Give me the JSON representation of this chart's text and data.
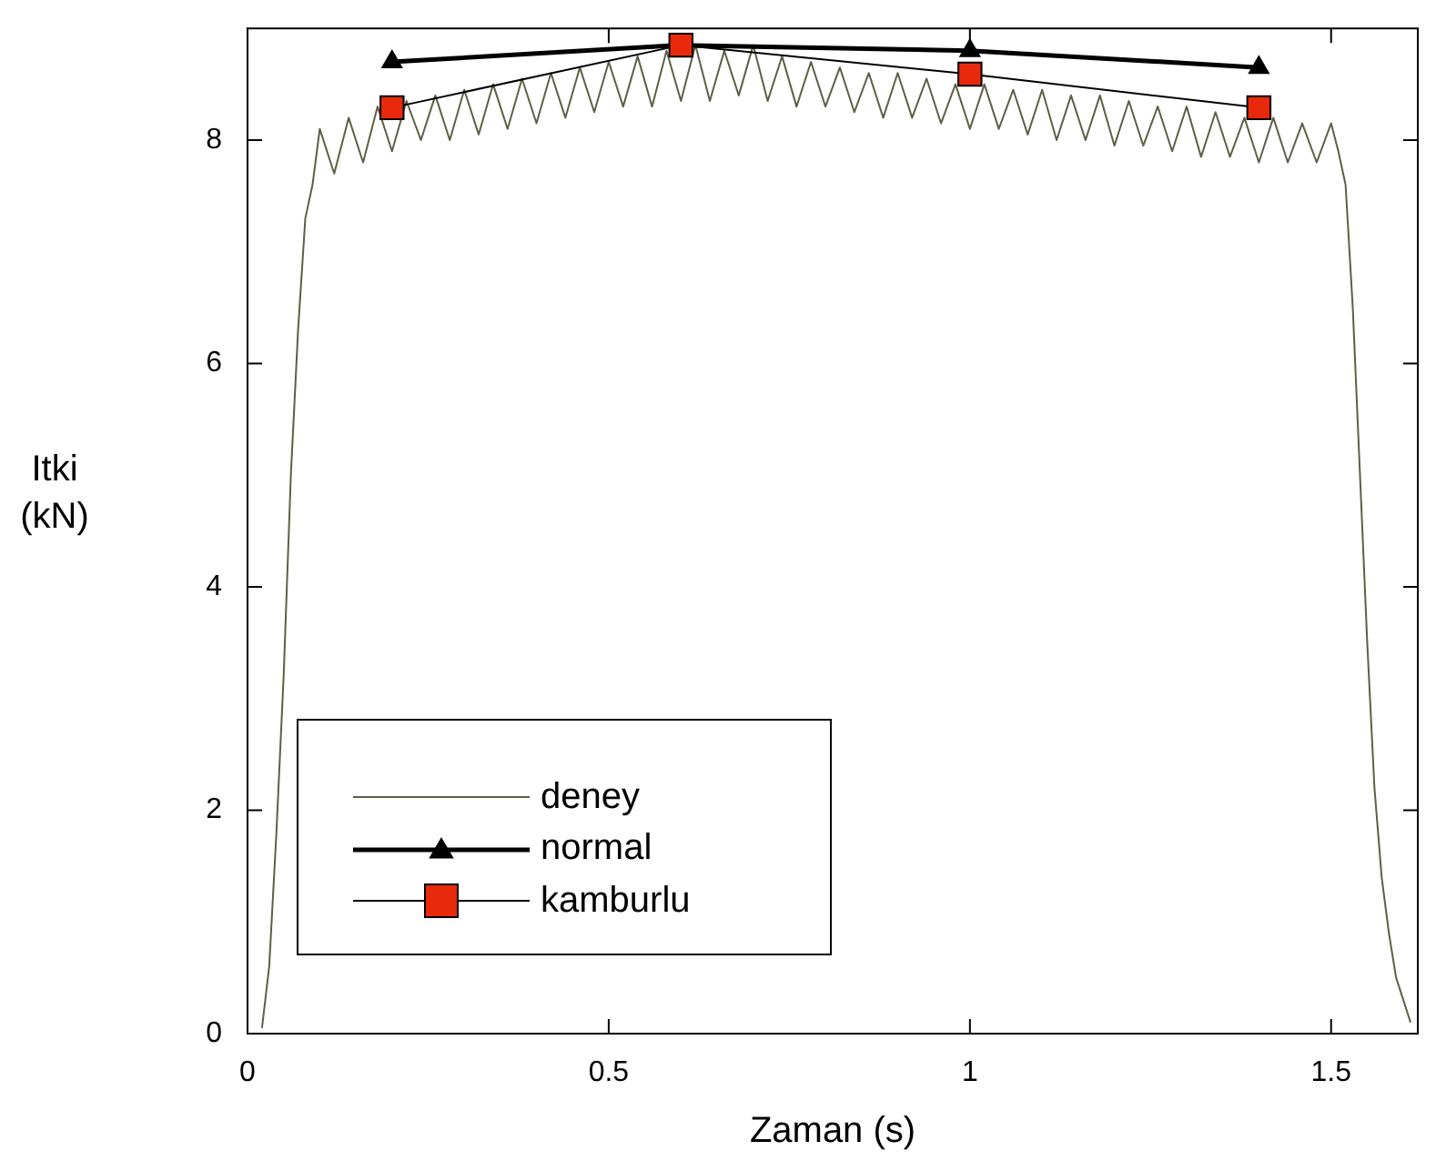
{
  "chart_data": {
    "type": "line",
    "xlabel": "Zaman (s)",
    "ylabel": "Itki (kN)",
    "xlim": [
      0,
      1.62
    ],
    "ylim": [
      0,
      9
    ],
    "xticks": [
      0,
      0.5,
      1,
      1.5
    ],
    "yticks": [
      0,
      2,
      4,
      6,
      8
    ],
    "grid": false,
    "legend": "bottom left",
    "series": [
      {
        "name": "deney",
        "color": "#5f5f45",
        "marker": "none",
        "x": [
          0.02,
          0.03,
          0.04,
          0.05,
          0.06,
          0.07,
          0.08,
          0.09,
          0.1,
          0.12,
          0.14,
          0.16,
          0.18,
          0.2,
          0.22,
          0.24,
          0.26,
          0.28,
          0.3,
          0.32,
          0.34,
          0.36,
          0.38,
          0.4,
          0.42,
          0.44,
          0.46,
          0.48,
          0.5,
          0.52,
          0.54,
          0.56,
          0.58,
          0.6,
          0.62,
          0.64,
          0.66,
          0.68,
          0.7,
          0.72,
          0.74,
          0.76,
          0.78,
          0.8,
          0.82,
          0.84,
          0.86,
          0.88,
          0.9,
          0.92,
          0.94,
          0.96,
          0.98,
          1.0,
          1.02,
          1.04,
          1.06,
          1.08,
          1.1,
          1.12,
          1.14,
          1.16,
          1.18,
          1.2,
          1.22,
          1.24,
          1.26,
          1.28,
          1.3,
          1.32,
          1.34,
          1.36,
          1.38,
          1.4,
          1.42,
          1.44,
          1.46,
          1.48,
          1.5,
          1.51,
          1.52,
          1.53,
          1.54,
          1.55,
          1.56,
          1.57,
          1.58,
          1.59,
          1.6,
          1.61
        ],
        "values": [
          0.05,
          0.6,
          1.8,
          3.2,
          5.0,
          6.3,
          7.3,
          7.6,
          8.1,
          7.7,
          8.2,
          7.8,
          8.3,
          7.9,
          8.35,
          8.0,
          8.4,
          8.0,
          8.45,
          8.05,
          8.5,
          8.1,
          8.55,
          8.15,
          8.6,
          8.2,
          8.65,
          8.25,
          8.7,
          8.3,
          8.75,
          8.3,
          8.8,
          8.35,
          8.85,
          8.35,
          8.8,
          8.4,
          8.85,
          8.35,
          8.75,
          8.3,
          8.7,
          8.3,
          8.65,
          8.25,
          8.6,
          8.2,
          8.6,
          8.2,
          8.55,
          8.15,
          8.5,
          8.1,
          8.5,
          8.1,
          8.45,
          8.05,
          8.45,
          8.0,
          8.4,
          8.0,
          8.4,
          7.95,
          8.35,
          7.95,
          8.3,
          7.9,
          8.3,
          7.85,
          8.25,
          7.85,
          8.2,
          7.8,
          8.2,
          7.8,
          8.15,
          7.8,
          8.15,
          7.9,
          7.6,
          6.5,
          5.0,
          3.5,
          2.2,
          1.4,
          0.9,
          0.5,
          0.3,
          0.1
        ]
      },
      {
        "name": "normal",
        "color": "#000000",
        "marker": "triangle",
        "x": [
          0.2,
          0.6,
          1.0,
          1.4
        ],
        "values": [
          8.7,
          8.85,
          8.8,
          8.65
        ]
      },
      {
        "name": "kamburlu",
        "color": "#e8290b",
        "marker": "square",
        "x": [
          0.2,
          0.6,
          1.0,
          1.4
        ],
        "values": [
          8.29,
          8.85,
          8.59,
          8.29
        ]
      }
    ]
  }
}
